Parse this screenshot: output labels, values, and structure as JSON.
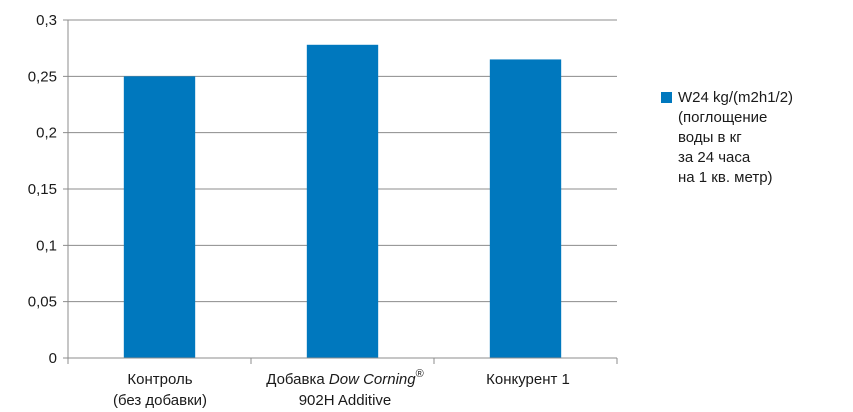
{
  "chart_data": {
    "type": "bar",
    "categories": [
      [
        "Контроль",
        "(без добавки)"
      ],
      [
        "Добавка Dow Corning® 902H Additive"
      ],
      [
        "Конкурент 1"
      ]
    ],
    "category_labels": {
      "c0_line1": "Контроль",
      "c0_line2": "(без добавки)",
      "c1_line1_a": "Добавка ",
      "c1_line1_b": "Dow Corning",
      "c1_line1_sup": "®",
      "c1_line2": "902H Additive",
      "c2_line1": "Конкурент 1"
    },
    "series": [
      {
        "name": "W24 kg/(m2h1/2) (поглощение воды в кг за 24 часа на 1 кв. метр)",
        "values": [
          0.25,
          0.278,
          0.265
        ],
        "color": "#0078be"
      }
    ],
    "ylim": [
      0,
      0.3
    ],
    "yticks": [
      0,
      0.05,
      0.1,
      0.15,
      0.2,
      0.25,
      0.3
    ],
    "ytick_labels": [
      "0",
      "0,05",
      "0,1",
      "0,15",
      "0,2",
      "0,25",
      "0,3"
    ],
    "grid": true,
    "legend_position": "right",
    "xlabel": "",
    "ylabel": "",
    "title": ""
  },
  "legend": {
    "lines": [
      "W24 kg/(m2h1/2)",
      "(поглощение",
      "воды в кг",
      "за 24 часа",
      "на 1 кв. метр)"
    ]
  }
}
